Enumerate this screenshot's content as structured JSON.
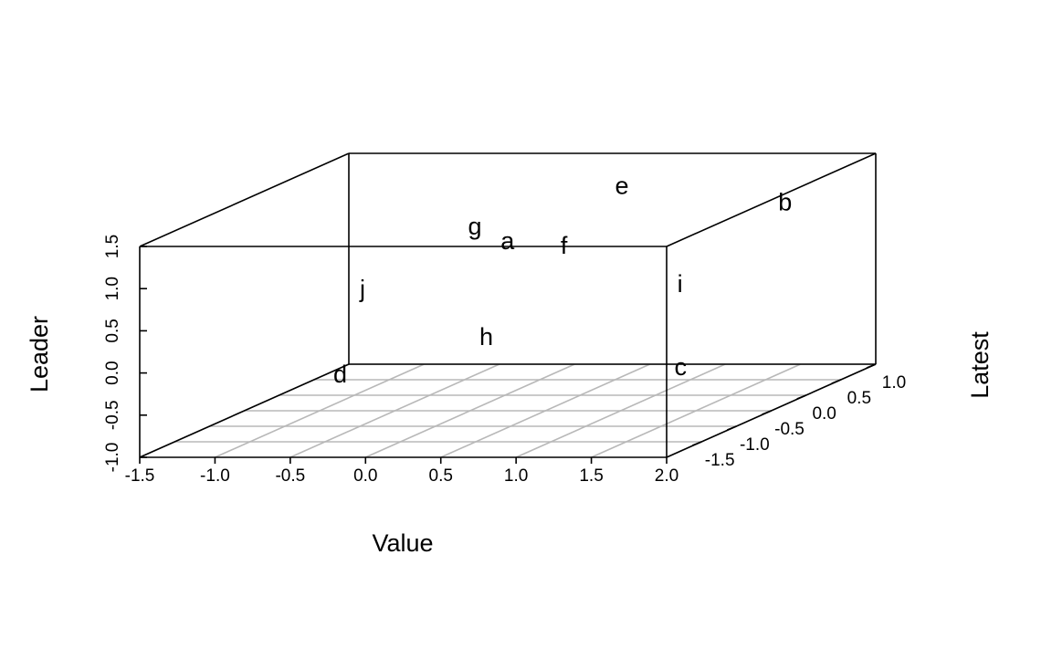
{
  "chart_data": {
    "type": "scatter3d",
    "title": "",
    "xlabel": "Value",
    "ylabel": "Latest",
    "zlabel": "Leader",
    "xlim": [
      -1.5,
      2.0
    ],
    "ylim": [
      -2.0,
      1.0
    ],
    "zlim": [
      -1.0,
      1.5
    ],
    "x_ticks": [
      "-1.5",
      "-1.0",
      "-0.5",
      "0.0",
      "0.5",
      "1.0",
      "1.5",
      "2.0"
    ],
    "y_ticks": [
      "-1.5",
      "-1.0",
      "-0.5",
      "0.0",
      "0.5",
      "1.0"
    ],
    "z_ticks": [
      "-1.0",
      "-0.5",
      "0.0",
      "0.5",
      "1.0",
      "1.5"
    ],
    "grid": "floor",
    "colors": {
      "box": "#000000",
      "grid": "#b8b8b8",
      "text": "#000000"
    },
    "points": [
      {
        "label": "a",
        "x": -0.4,
        "y": 0.9,
        "z": 0.5
      },
      {
        "label": "b",
        "x": 2.0,
        "y": -0.3,
        "z": 1.4
      },
      {
        "label": "c",
        "x": 2.0,
        "y": -1.8,
        "z": 0.0
      },
      {
        "label": "d",
        "x": -0.4,
        "y": -1.5,
        "z": -0.2
      },
      {
        "label": "e",
        "x": 0.8,
        "y": -0.05,
        "z": 1.5
      },
      {
        "label": "f",
        "x": 0.3,
        "y": 0.2,
        "z": 0.7
      },
      {
        "label": "g",
        "x": -0.2,
        "y": 0.0,
        "z": 1.0
      },
      {
        "label": "h",
        "x": 0.2,
        "y": -0.7,
        "z": -0.05
      },
      {
        "label": "i",
        "x": 0.7,
        "y": 1.0,
        "z": -0.05
      },
      {
        "label": "j",
        "x": -0.9,
        "y": -0.1,
        "z": 0.3
      }
    ]
  }
}
